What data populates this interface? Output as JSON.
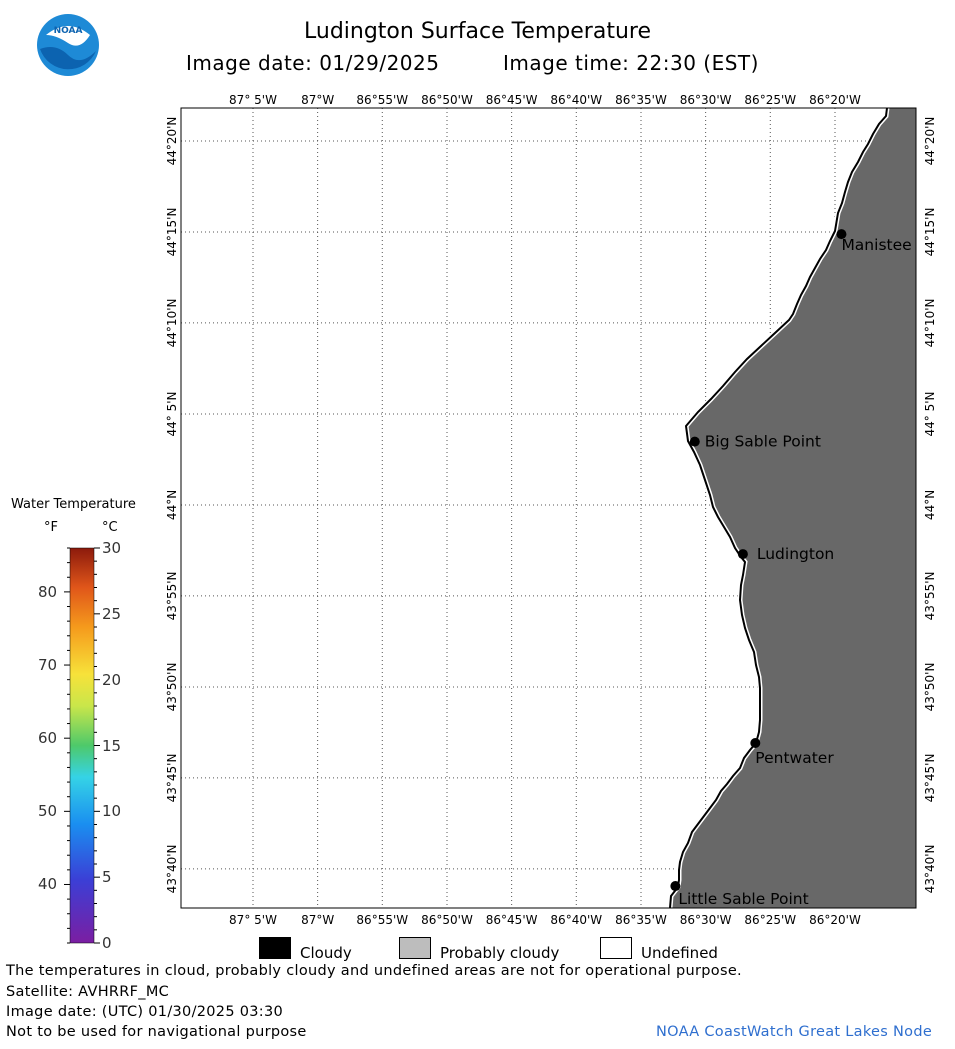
{
  "header": {
    "logo_text": "NOAA",
    "title": "Ludington Surface Temperature",
    "image_date": "Image date: 01/29/2025",
    "image_time": "Image time: 22:30 (EST)"
  },
  "map": {
    "lon_labels": [
      "87° 5'W",
      "87°W",
      "86°55'W",
      "86°50'W",
      "86°45'W",
      "86°40'W",
      "86°35'W",
      "86°30'W",
      "86°25'W",
      "86°20'W"
    ],
    "lat_labels": [
      "44°20'N",
      "44°15'N",
      "44°10'N",
      "44° 5'N",
      "44°N",
      "43°55'N",
      "43°50'N",
      "43°45'N",
      "43°40'N"
    ],
    "places": [
      {
        "name": "Manistee",
        "lat": 44.248,
        "lon": -86.325
      },
      {
        "name": "Big Sable Point",
        "lat": 44.058,
        "lon": -86.514
      },
      {
        "name": "Ludington",
        "lat": 43.955,
        "lon": -86.452
      },
      {
        "name": "Pentwater",
        "lat": 43.782,
        "lon": -86.436
      },
      {
        "name": "Little Sable Point",
        "lat": 43.651,
        "lon": -86.539
      }
    ],
    "land_color": "#686868"
  },
  "legend": {
    "title": "Water Temperature",
    "unit_f": "°F",
    "unit_c": "°C",
    "f_ticks": [
      "80",
      "70",
      "60",
      "50",
      "40"
    ],
    "c_ticks": [
      "30",
      "25",
      "20",
      "15",
      "10",
      "5",
      "0"
    ],
    "key_items": [
      "Cloudy",
      "Probably cloudy",
      "Undefined"
    ]
  },
  "footer": {
    "disclaimer": "The temperatures in cloud, probably cloudy and undefined areas are not for operational purpose.",
    "satellite": "Satellite: AVHRRF_MC",
    "utc_date": "Image date: (UTC) 01/30/2025  03:30",
    "nav_note": "Not to be used for navigational purpose",
    "credit": "NOAA CoastWatch Great Lakes Node"
  }
}
